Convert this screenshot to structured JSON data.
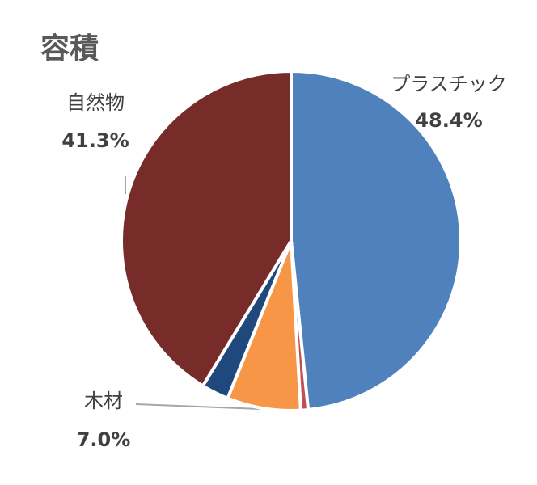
{
  "chart_data": {
    "type": "pie",
    "title": "容積",
    "categories": [
      "プラスチック",
      null,
      "木材",
      null,
      "自然物"
    ],
    "values": [
      48.4,
      0.7,
      7.0,
      2.6,
      41.3
    ],
    "value_labels": [
      "48.4%",
      null,
      "7.0%",
      null,
      "41.3%"
    ],
    "colors": [
      "#4f81bd",
      "#c0504d",
      "#f79646",
      "#1f497d",
      "#772c2a"
    ]
  }
}
